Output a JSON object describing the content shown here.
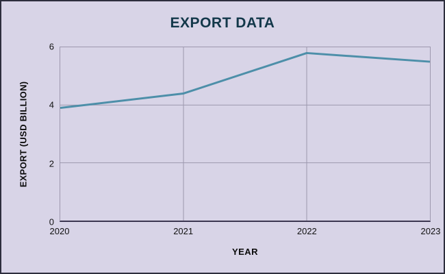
{
  "chart_data": {
    "type": "line",
    "title": "EXPORT DATA",
    "xlabel": "YEAR",
    "ylabel": "EXPORT (USD BILLION)",
    "categories": [
      "2020",
      "2021",
      "2022",
      "2023"
    ],
    "series": [
      {
        "name": "Export",
        "values": [
          3.9,
          4.4,
          5.8,
          5.5
        ]
      }
    ],
    "ylim": [
      0,
      6
    ],
    "yticks": [
      0,
      2,
      4,
      6
    ],
    "grid": true,
    "legend": "none",
    "colors": {
      "line": "#4d8fa9",
      "background": "#d8d4e7",
      "grid": "#9d98ae",
      "axis": "#3b3650",
      "title": "#13384a",
      "tick_text": "#111111",
      "frame_border": "#2d2d3d"
    }
  }
}
